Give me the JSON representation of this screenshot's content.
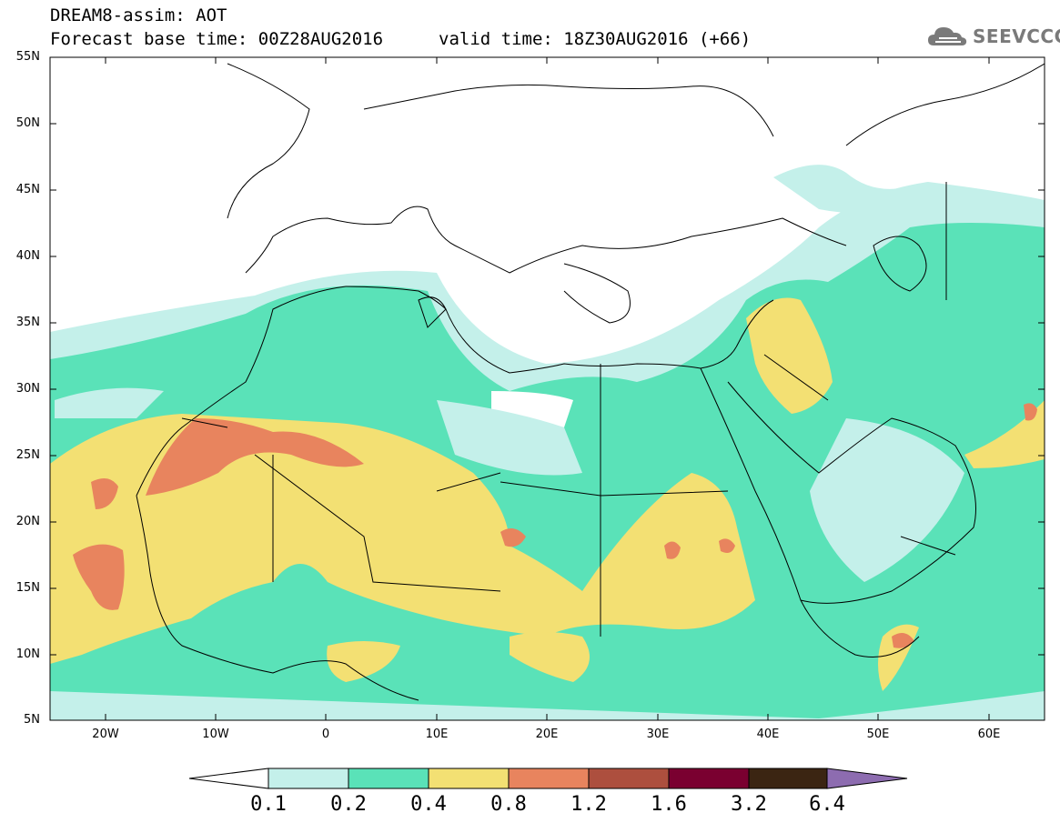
{
  "header": {
    "line1": "DREAM8-assim: AOT",
    "line2": "Forecast base time: 00Z28AUG2016",
    "valid": "valid time: 18Z30AUG2016 (+66)",
    "logo_text": "SEEVCCC"
  },
  "axes": {
    "lat_labels": [
      "55N",
      "50N",
      "45N",
      "40N",
      "35N",
      "30N",
      "25N",
      "20N",
      "15N",
      "10N",
      "5N"
    ],
    "lon_labels": [
      "20W",
      "10W",
      "0",
      "10E",
      "20E",
      "30E",
      "40E",
      "50E",
      "60E"
    ]
  },
  "colorbar": {
    "colors": [
      "#c4f0ea",
      "#5ae2b8",
      "#f3e073",
      "#e8845e",
      "#ad4f3e",
      "#7a0030",
      "#3b2512",
      "#8d6cb0"
    ],
    "labels": [
      "0.1",
      "0.2",
      "0.4",
      "0.8",
      "1.2",
      "1.6",
      "3.2",
      "6.4"
    ]
  },
  "colors": {
    "light": "#c4f0ea",
    "green": "#5ae2b8",
    "yellow": "#f3e073",
    "orange": "#e8845e"
  }
}
